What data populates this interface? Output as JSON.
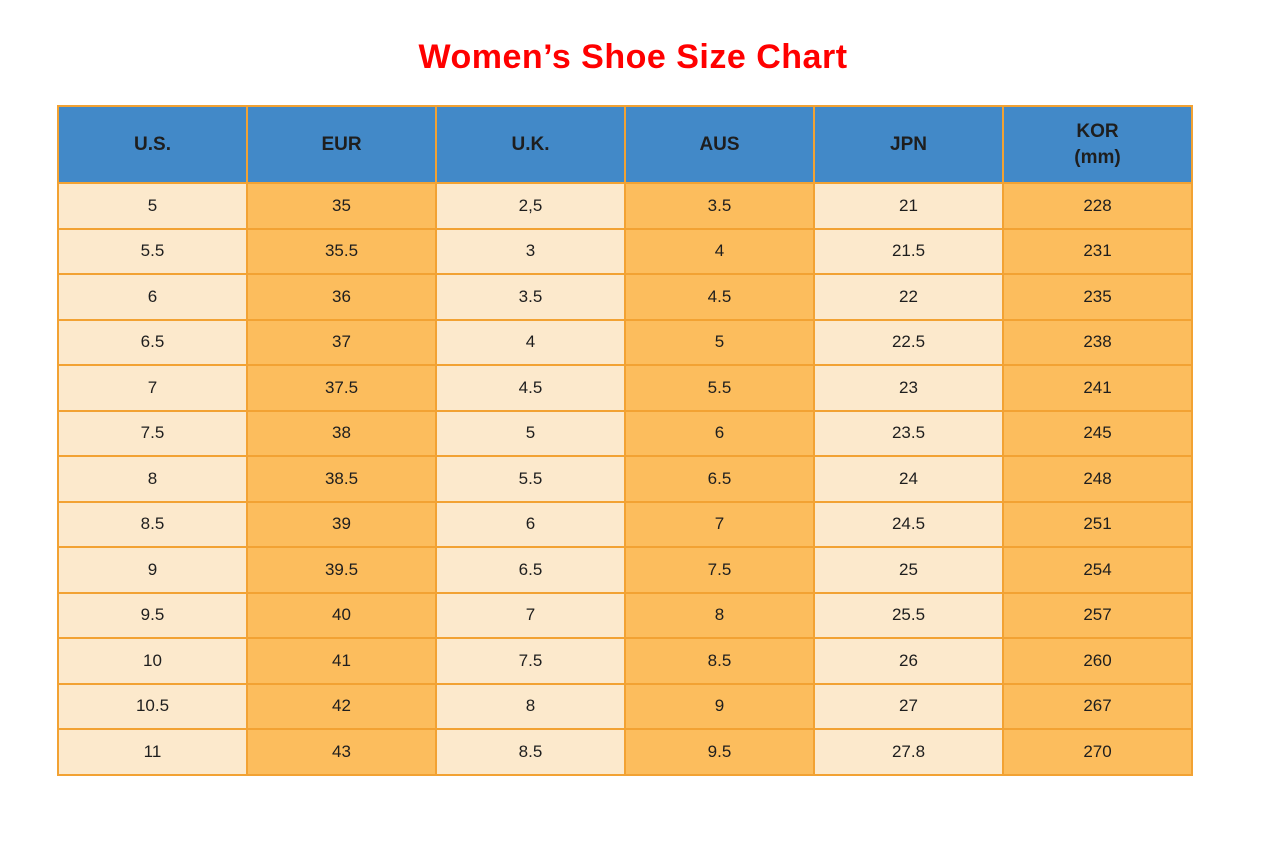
{
  "title": "Women’s Shoe Size Chart",
  "colors": {
    "title": "#ff0000",
    "header_bg": "#4289c8",
    "cell_light": "#fce9cc",
    "cell_dark": "#fcbd5d",
    "border": "#f2a233",
    "text": "#1e1e1e"
  },
  "table": {
    "columns": [
      {
        "key": "us",
        "label": "U.S.",
        "sublabel": ""
      },
      {
        "key": "eur",
        "label": "EUR",
        "sublabel": ""
      },
      {
        "key": "uk",
        "label": "U.K.",
        "sublabel": ""
      },
      {
        "key": "aus",
        "label": "AUS",
        "sublabel": ""
      },
      {
        "key": "jpn",
        "label": "JPN",
        "sublabel": ""
      },
      {
        "key": "kor",
        "label": "KOR",
        "sublabel": "(mm)"
      }
    ],
    "rows": [
      [
        "5",
        "35",
        "2,5",
        "3.5",
        "21",
        "228"
      ],
      [
        "5.5",
        "35.5",
        "3",
        "4",
        "21.5",
        "231"
      ],
      [
        "6",
        "36",
        "3.5",
        "4.5",
        "22",
        "235"
      ],
      [
        "6.5",
        "37",
        "4",
        "5",
        "22.5",
        "238"
      ],
      [
        "7",
        "37.5",
        "4.5",
        "5.5",
        "23",
        "241"
      ],
      [
        "7.5",
        "38",
        "5",
        "6",
        "23.5",
        "245"
      ],
      [
        "8",
        "38.5",
        "5.5",
        "6.5",
        "24",
        "248"
      ],
      [
        "8.5",
        "39",
        "6",
        "7",
        "24.5",
        "251"
      ],
      [
        "9",
        "39.5",
        "6.5",
        "7.5",
        "25",
        "254"
      ],
      [
        "9.5",
        "40",
        "7",
        "8",
        "25.5",
        "257"
      ],
      [
        "10",
        "41",
        "7.5",
        "8.5",
        "26",
        "260"
      ],
      [
        "10.5",
        "42",
        "8",
        "9",
        "27",
        "267"
      ],
      [
        "11",
        "43",
        "8.5",
        "9.5",
        "27.8",
        "270"
      ]
    ]
  },
  "chart_data": {
    "type": "table",
    "title": "Women’s Shoe Size Chart",
    "columns": [
      "U.S.",
      "EUR",
      "U.K.",
      "AUS",
      "JPN",
      "KOR (mm)"
    ],
    "rows": [
      [
        "5",
        "35",
        "2,5",
        "3.5",
        "21",
        "228"
      ],
      [
        "5.5",
        "35.5",
        "3",
        "4",
        "21.5",
        "231"
      ],
      [
        "6",
        "36",
        "3.5",
        "4.5",
        "22",
        "235"
      ],
      [
        "6.5",
        "37",
        "4",
        "5",
        "22.5",
        "238"
      ],
      [
        "7",
        "37.5",
        "4.5",
        "5.5",
        "23",
        "241"
      ],
      [
        "7.5",
        "38",
        "5",
        "6",
        "23.5",
        "245"
      ],
      [
        "8",
        "38.5",
        "5.5",
        "6.5",
        "24",
        "248"
      ],
      [
        "8.5",
        "39",
        "6",
        "7",
        "24.5",
        "251"
      ],
      [
        "9",
        "39.5",
        "6.5",
        "7.5",
        "25",
        "254"
      ],
      [
        "9.5",
        "40",
        "7",
        "8",
        "25.5",
        "257"
      ],
      [
        "10",
        "41",
        "7.5",
        "8.5",
        "26",
        "260"
      ],
      [
        "10.5",
        "42",
        "8",
        "9",
        "27",
        "267"
      ],
      [
        "11",
        "43",
        "8.5",
        "9.5",
        "27.8",
        "270"
      ]
    ]
  }
}
